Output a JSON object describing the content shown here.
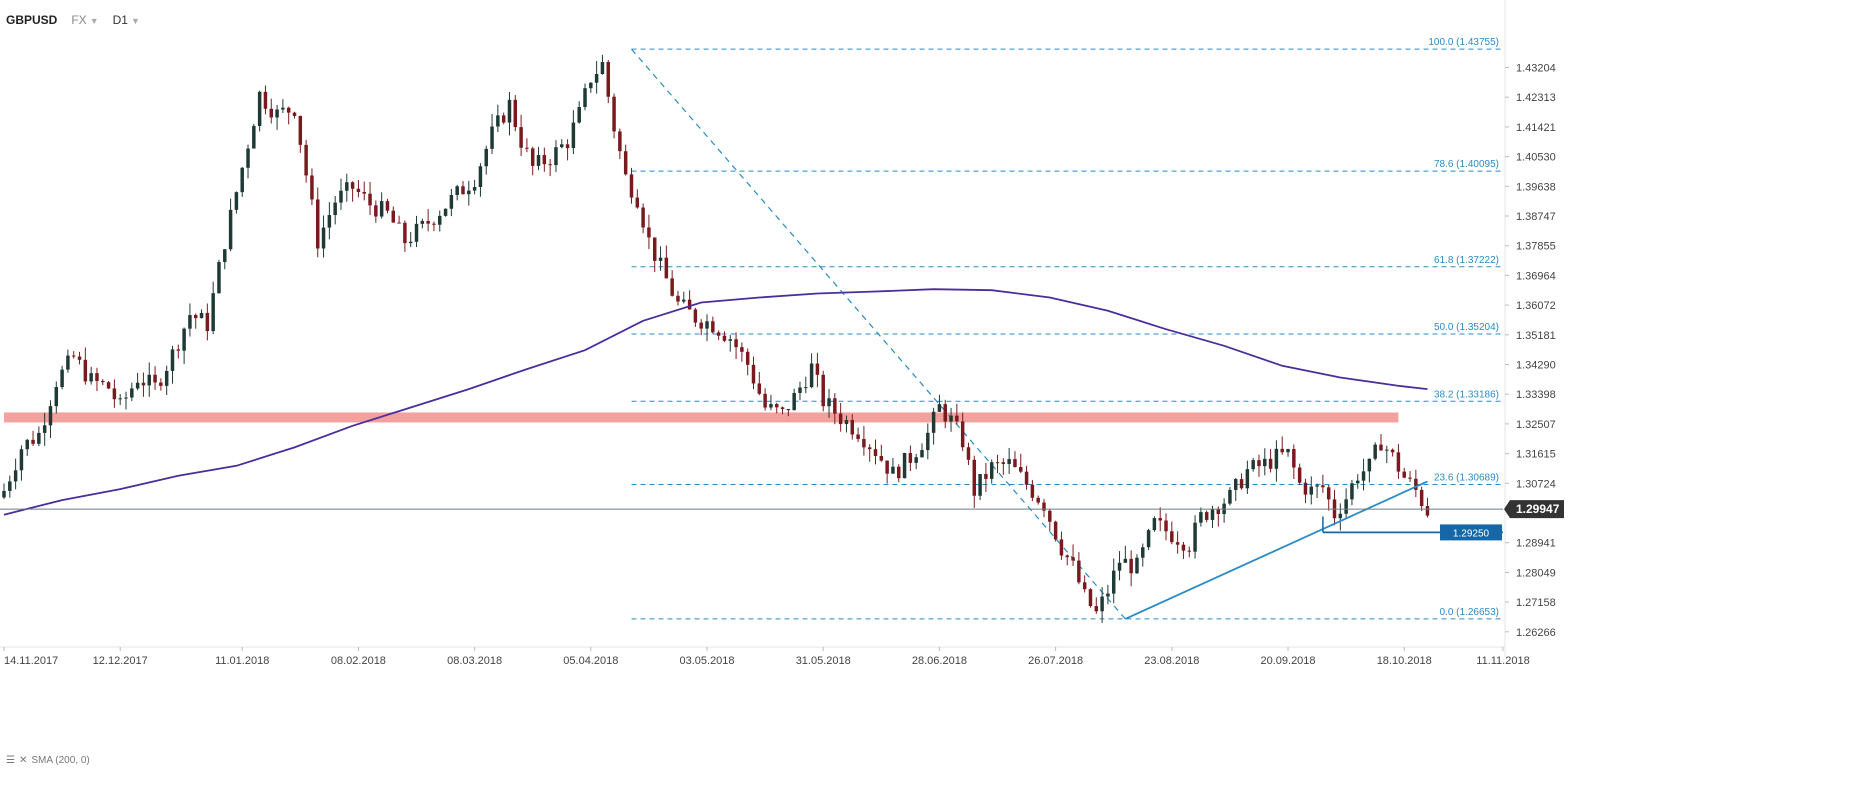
{
  "header": {
    "symbol": "GBPUSD",
    "market": "FX",
    "interval": "D1"
  },
  "legend": {
    "indicator": "SMA (200, 0)"
  },
  "colors": {
    "bull": "#1f3a35",
    "bear": "#7a1a1f",
    "sma": "#4b2d9c",
    "fib": "#2b8bc6",
    "trendline": "#2b8bc6",
    "zone": "#ef8a86",
    "support": "#1667a8",
    "price_line": "#6b7b85",
    "price_label_bg": "#333333",
    "support_label_bg": "#1667a8"
  },
  "chart_data": {
    "type": "candlestick",
    "y_range": [
      1.2587,
      1.4451
    ],
    "x_range": [
      0,
      258
    ],
    "y_ticks": [
      "1.43204",
      "1.42313",
      "1.41421",
      "1.40530",
      "1.39638",
      "1.38747",
      "1.37855",
      "1.36964",
      "1.36072",
      "1.35181",
      "1.34290",
      "1.33398",
      "1.32507",
      "1.31615",
      "1.30724",
      "1.29947",
      "1.28941",
      "1.28049",
      "1.27158",
      "1.26266"
    ],
    "x_ticks": [
      {
        "i": 0,
        "label": "14.11.2017"
      },
      {
        "i": 20,
        "label": "12.12.2017"
      },
      {
        "i": 41,
        "label": "11.01.2018"
      },
      {
        "i": 61,
        "label": "08.02.2018"
      },
      {
        "i": 81,
        "label": "08.03.2018"
      },
      {
        "i": 101,
        "label": "05.04.2018"
      },
      {
        "i": 121,
        "label": "03.05.2018"
      },
      {
        "i": 141,
        "label": "31.05.2018"
      },
      {
        "i": 161,
        "label": "28.06.2018"
      },
      {
        "i": 181,
        "label": "26.07.2018"
      },
      {
        "i": 201,
        "label": "23.08.2018"
      },
      {
        "i": 221,
        "label": "20.09.2018"
      },
      {
        "i": 241,
        "label": "18.10.2018"
      },
      {
        "i": 258,
        "label": "11.11.2018"
      }
    ],
    "anchors": [
      [
        0,
        1.305
      ],
      [
        3,
        1.318
      ],
      [
        6,
        1.322
      ],
      [
        9,
        1.338
      ],
      [
        12,
        1.345
      ],
      [
        15,
        1.338
      ],
      [
        18,
        1.336
      ],
      [
        20,
        1.33
      ],
      [
        23,
        1.339
      ],
      [
        26,
        1.336
      ],
      [
        29,
        1.346
      ],
      [
        32,
        1.358
      ],
      [
        35,
        1.355
      ],
      [
        38,
        1.38
      ],
      [
        41,
        1.402
      ],
      [
        44,
        1.424
      ],
      [
        47,
        1.418
      ],
      [
        50,
        1.42
      ],
      [
        52,
        1.4
      ],
      [
        54,
        1.38
      ],
      [
        57,
        1.392
      ],
      [
        60,
        1.396
      ],
      [
        63,
        1.391
      ],
      [
        66,
        1.388
      ],
      [
        69,
        1.38
      ],
      [
        72,
        1.384
      ],
      [
        75,
        1.389
      ],
      [
        78,
        1.394
      ],
      [
        81,
        1.399
      ],
      [
        84,
        1.412
      ],
      [
        87,
        1.421
      ],
      [
        89,
        1.41
      ],
      [
        91,
        1.402
      ],
      [
        94,
        1.405
      ],
      [
        97,
        1.41
      ],
      [
        99,
        1.418
      ],
      [
        101,
        1.429
      ],
      [
        103,
        1.433
      ],
      [
        105,
        1.414
      ],
      [
        107,
        1.399
      ],
      [
        109,
        1.393
      ],
      [
        111,
        1.38
      ],
      [
        113,
        1.372
      ],
      [
        116,
        1.361
      ],
      [
        119,
        1.357
      ],
      [
        122,
        1.355
      ],
      [
        125,
        1.351
      ],
      [
        128,
        1.343
      ],
      [
        131,
        1.33
      ],
      [
        134,
        1.328
      ],
      [
        136,
        1.333
      ],
      [
        139,
        1.342
      ],
      [
        141,
        1.332
      ],
      [
        144,
        1.327
      ],
      [
        147,
        1.323
      ],
      [
        150,
        1.317
      ],
      [
        153,
        1.31
      ],
      [
        156,
        1.315
      ],
      [
        159,
        1.322
      ],
      [
        161,
        1.33
      ],
      [
        163,
        1.326
      ],
      [
        165,
        1.32
      ],
      [
        167,
        1.305
      ],
      [
        170,
        1.312
      ],
      [
        173,
        1.313
      ],
      [
        176,
        1.307
      ],
      [
        179,
        1.301
      ],
      [
        182,
        1.288
      ],
      [
        184,
        1.282
      ],
      [
        186,
        1.273
      ],
      [
        188,
        1.268
      ],
      [
        190,
        1.275
      ],
      [
        192,
        1.284
      ],
      [
        195,
        1.282
      ],
      [
        198,
        1.295
      ],
      [
        201,
        1.292
      ],
      [
        204,
        1.289
      ],
      [
        206,
        1.297
      ],
      [
        208,
        1.3
      ],
      [
        211,
        1.303
      ],
      [
        214,
        1.311
      ],
      [
        217,
        1.313
      ],
      [
        219,
        1.315
      ],
      [
        221,
        1.316
      ],
      [
        223,
        1.307
      ],
      [
        225,
        1.305
      ],
      [
        227,
        1.306
      ],
      [
        229,
        1.298
      ],
      [
        231,
        1.303
      ],
      [
        233,
        1.31
      ],
      [
        235,
        1.312
      ],
      [
        237,
        1.32
      ],
      [
        239,
        1.315
      ],
      [
        241,
        1.309
      ],
      [
        243,
        1.305
      ],
      [
        245,
        1.299
      ]
    ],
    "sma": [
      [
        0,
        1.2978
      ],
      [
        10,
        1.3022
      ],
      [
        20,
        1.3055
      ],
      [
        30,
        1.3095
      ],
      [
        40,
        1.3125
      ],
      [
        50,
        1.318
      ],
      [
        60,
        1.3245
      ],
      [
        70,
        1.33
      ],
      [
        80,
        1.3355
      ],
      [
        90,
        1.3415
      ],
      [
        100,
        1.3472
      ],
      [
        110,
        1.356
      ],
      [
        120,
        1.3615
      ],
      [
        130,
        1.363
      ],
      [
        140,
        1.3642
      ],
      [
        150,
        1.3648
      ],
      [
        160,
        1.3655
      ],
      [
        170,
        1.3652
      ],
      [
        180,
        1.363
      ],
      [
        190,
        1.359
      ],
      [
        200,
        1.3535
      ],
      [
        210,
        1.3485
      ],
      [
        220,
        1.3425
      ],
      [
        230,
        1.339
      ],
      [
        240,
        1.3365
      ],
      [
        245,
        1.3355
      ]
    ],
    "fibonacci": [
      {
        "level": "100.0",
        "price": "1.43755",
        "value": 1.43755
      },
      {
        "level": "78.6",
        "price": "1.40095",
        "value": 1.40095
      },
      {
        "level": "61.8",
        "price": "1.37222",
        "value": 1.37222
      },
      {
        "level": "50.0",
        "price": "1.35204",
        "value": 1.35204
      },
      {
        "level": "38.2",
        "price": "1.33186",
        "value": 1.33186
      },
      {
        "level": "23.6",
        "price": "1.30689",
        "value": 1.30689
      },
      {
        "level": "0.0",
        "price": "1.26653",
        "value": 1.26653
      }
    ],
    "fib_start_i": 108,
    "fib_end_i": 270,
    "fib_swing": {
      "from": [
        108,
        1.43755
      ],
      "to": [
        193,
        1.26653
      ]
    },
    "resistance_zone": {
      "from_i": 0,
      "to_i": 240,
      "low": 1.3255,
      "high": 1.3285
    },
    "trendline": {
      "from": [
        193,
        1.26653
      ],
      "to": [
        245,
        1.3078
      ]
    },
    "support": {
      "from_i": 227,
      "to_i": 258,
      "value": 1.2925,
      "label": "1.29250"
    },
    "current_price": {
      "value": 1.29947,
      "label": "1.29947"
    }
  }
}
